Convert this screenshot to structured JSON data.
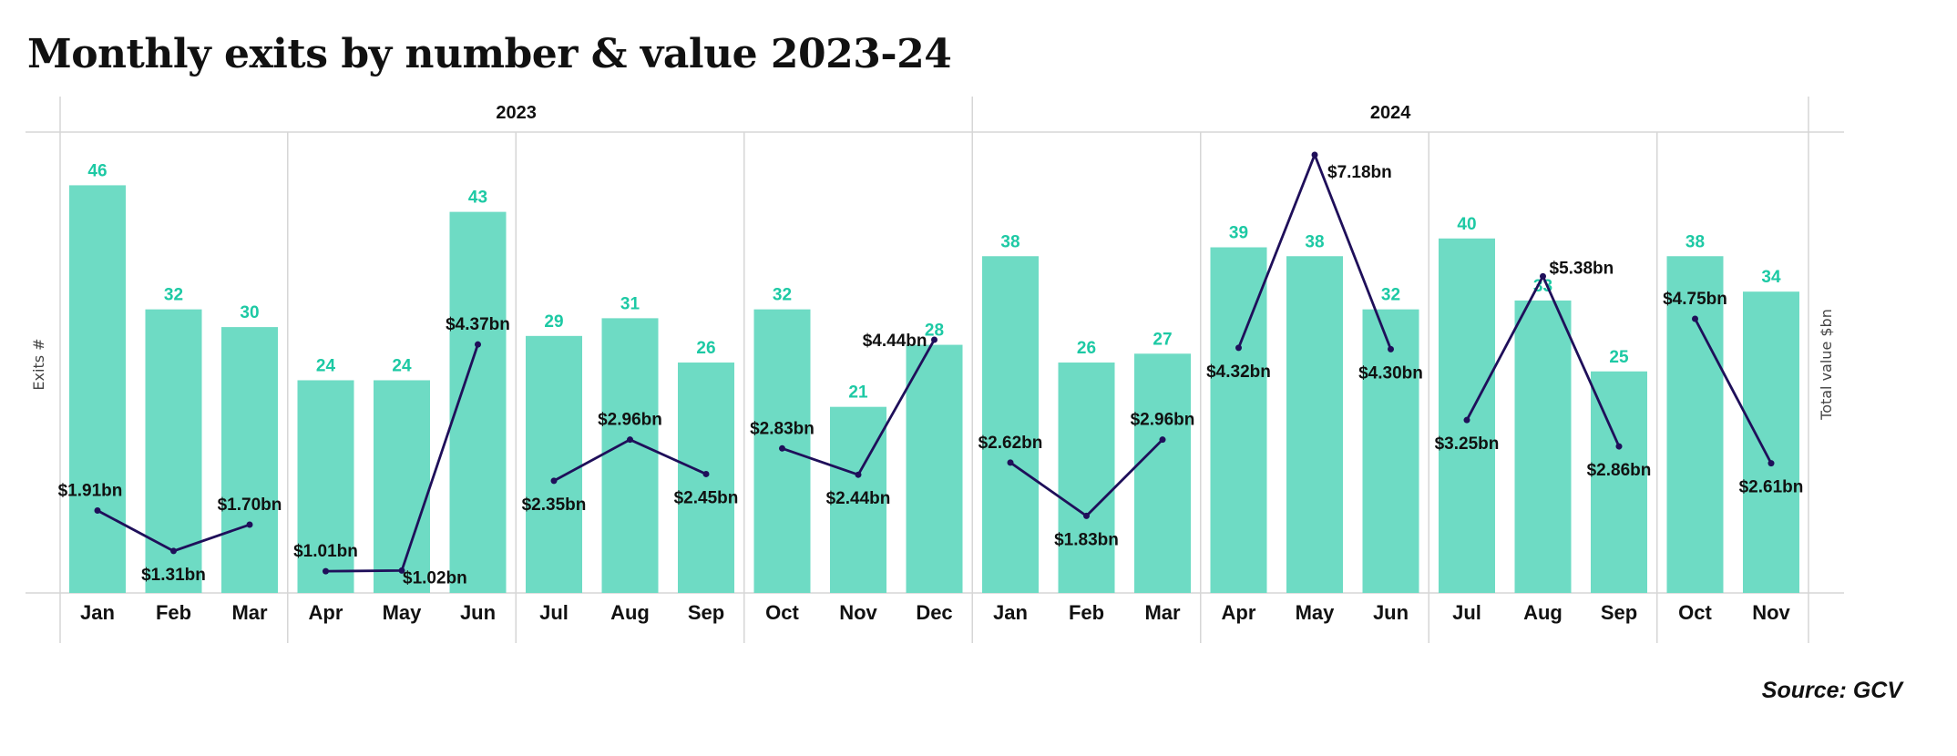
{
  "chart_data": {
    "type": "bar",
    "title": "Monthly exits by number & value 2023-24",
    "source": "Source: GCV",
    "ylabel": "Exits #",
    "y2label": "Total value $bn",
    "years": [
      {
        "label": "2023",
        "months": 12
      },
      {
        "label": "2024",
        "months": 11
      }
    ],
    "categories": [
      "Jan",
      "Feb",
      "Mar",
      "Apr",
      "May",
      "Jun",
      "Jul",
      "Aug",
      "Sep",
      "Oct",
      "Nov",
      "Dec",
      "Jan",
      "Feb",
      "Mar",
      "Apr",
      "May",
      "Jun",
      "Jul",
      "Aug",
      "Sep",
      "Oct",
      "Nov"
    ],
    "series": [
      {
        "name": "Exits #",
        "type": "bar",
        "color": "#6edbc4",
        "label_color": "#1dc9a4",
        "values": [
          46,
          32,
          30,
          24,
          24,
          43,
          29,
          31,
          26,
          32,
          21,
          28,
          38,
          26,
          27,
          39,
          38,
          32,
          40,
          33,
          25,
          38,
          34
        ]
      },
      {
        "name": "Total value $bn",
        "type": "line",
        "color": "#1f0f5a",
        "segments": "quarterly",
        "values": [
          1.91,
          1.31,
          1.7,
          1.01,
          1.02,
          4.37,
          2.35,
          2.96,
          2.45,
          2.83,
          2.44,
          4.44,
          2.62,
          1.83,
          2.96,
          4.32,
          7.18,
          4.3,
          3.25,
          5.38,
          2.86,
          4.75,
          2.61
        ],
        "labels": [
          "$1.91bn",
          "$1.31bn",
          "$1.70bn",
          "$1.01bn",
          "$1.02bn",
          "$4.37bn",
          "$2.35bn",
          "$2.96bn",
          "$2.45bn",
          "$2.83bn",
          "$2.44bn",
          "$4.44bn",
          "$2.62bn",
          "$1.83bn",
          "$2.96bn",
          "$4.32bn",
          "$7.18bn",
          "$4.30bn",
          "$3.25bn",
          "$5.38bn",
          "$2.86bn",
          "$4.75bn",
          "$2.61bn"
        ]
      }
    ],
    "ylim": [
      0,
      52
    ],
    "grid": false
  }
}
